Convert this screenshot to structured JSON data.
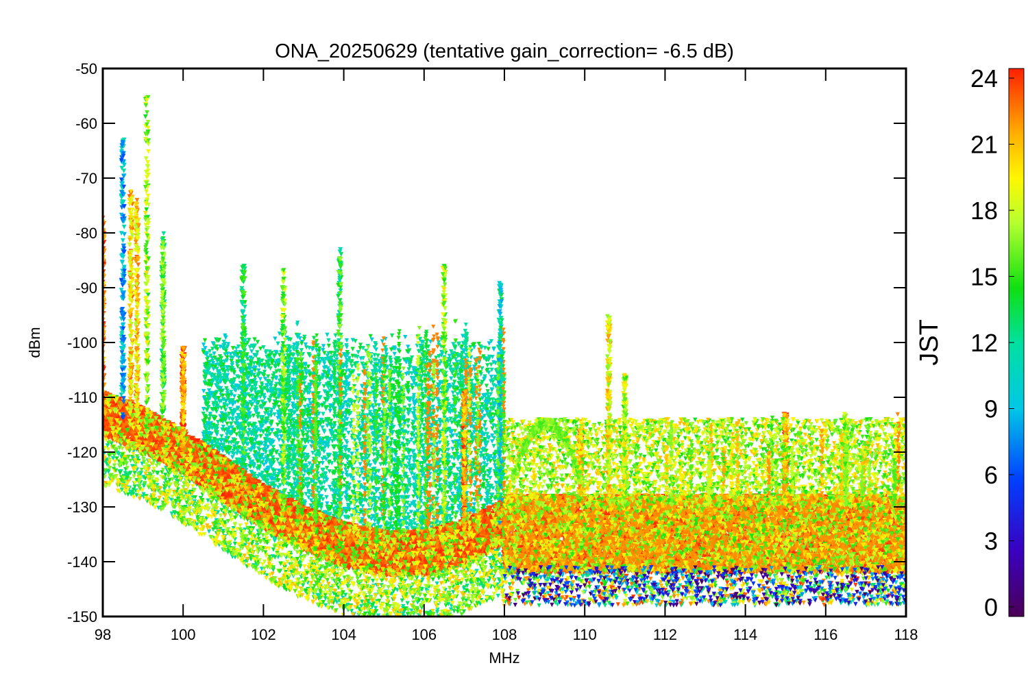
{
  "chart_data": {
    "type": "scatter",
    "title": "ONA_20250629 (tentative gain_correction= -6.5 dB)",
    "xlabel": "MHz",
    "ylabel": "dBm",
    "xlim": [
      98,
      118
    ],
    "ylim": [
      -150,
      -50
    ],
    "x_ticks": [
      "98",
      "100",
      "102",
      "104",
      "106",
      "108",
      "110",
      "112",
      "114",
      "116",
      "118"
    ],
    "y_ticks": [
      "-50",
      "-60",
      "-70",
      "-80",
      "-90",
      "-100",
      "-110",
      "-120",
      "-130",
      "-140",
      "-150"
    ],
    "colorbar": {
      "label": "JST",
      "range": [
        0,
        24
      ],
      "ticks": [
        "24",
        "21",
        "18",
        "15",
        "12",
        "9",
        "6",
        "3",
        "0"
      ],
      "colormap": "rainbow (purple → blue → cyan → green → yellow → orange → red)"
    },
    "noise_floor": [
      {
        "x": 98.0,
        "y": -113
      },
      {
        "x": 99.0,
        "y": -116
      },
      {
        "x": 100.0,
        "y": -120
      },
      {
        "x": 101.0,
        "y": -125
      },
      {
        "x": 102.0,
        "y": -130
      },
      {
        "x": 103.0,
        "y": -134
      },
      {
        "x": 104.0,
        "y": -137
      },
      {
        "x": 105.0,
        "y": -138.5
      },
      {
        "x": 106.0,
        "y": -138.5
      },
      {
        "x": 107.0,
        "y": -136.5
      },
      {
        "x": 107.95,
        "y": -133
      },
      {
        "x": 108.0,
        "y": -136
      },
      {
        "x": 118.0,
        "y": -136
      }
    ],
    "strong_signals": [
      {
        "x": 98.0,
        "y": -77,
        "jst": 22
      },
      {
        "x": 98.5,
        "y": -63,
        "jst": 9
      },
      {
        "x": 98.7,
        "y": -72,
        "jst": 20
      },
      {
        "x": 98.85,
        "y": -73,
        "jst": 20
      },
      {
        "x": 99.1,
        "y": -55,
        "jst": 17
      },
      {
        "x": 99.5,
        "y": -80,
        "jst": 15
      },
      {
        "x": 100.0,
        "y": -101,
        "jst": 22
      },
      {
        "x": 101.5,
        "y": -86,
        "jst": 13
      },
      {
        "x": 102.5,
        "y": -86,
        "jst": 16
      },
      {
        "x": 103.9,
        "y": -82,
        "jst": 14
      },
      {
        "x": 106.5,
        "y": -86,
        "jst": 17
      },
      {
        "x": 107.0,
        "y": -109,
        "jst": 22
      },
      {
        "x": 107.9,
        "y": -89,
        "jst": 11
      },
      {
        "x": 109.9,
        "y": -116,
        "jst": 22
      },
      {
        "x": 110.6,
        "y": -95,
        "jst": 19
      },
      {
        "x": 111.0,
        "y": -106,
        "jst": 17
      },
      {
        "x": 115.0,
        "y": -113,
        "jst": 22
      },
      {
        "x": 116.5,
        "y": -113,
        "jst": 17
      }
    ]
  }
}
